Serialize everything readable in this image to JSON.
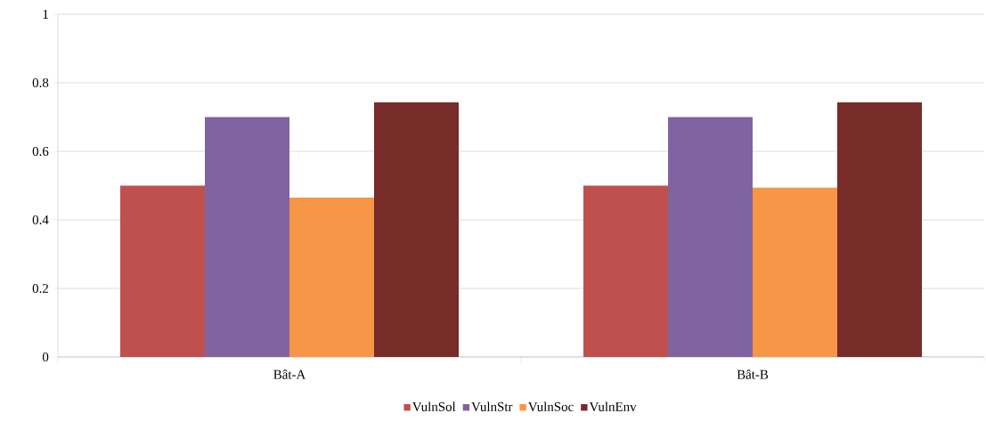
{
  "chart_data": {
    "type": "bar",
    "categories": [
      "Bât-A",
      "Bât-B"
    ],
    "series": [
      {
        "name": "VulnSol",
        "color": "#c0504d",
        "values": [
          0.5,
          0.5
        ]
      },
      {
        "name": "VulnStr",
        "color": "#8064a2",
        "values": [
          0.7,
          0.7
        ]
      },
      {
        "name": "VulnSoc",
        "color": "#f79646",
        "values": [
          0.465,
          0.494
        ]
      },
      {
        "name": "VulnEnv",
        "color": "#772c2a",
        "values": [
          0.743,
          0.743
        ]
      }
    ],
    "ylim": [
      0,
      1
    ],
    "yticks": [
      0,
      0.2,
      0.4,
      0.6,
      0.8,
      1
    ],
    "grid": "y",
    "legend": "bottom"
  }
}
